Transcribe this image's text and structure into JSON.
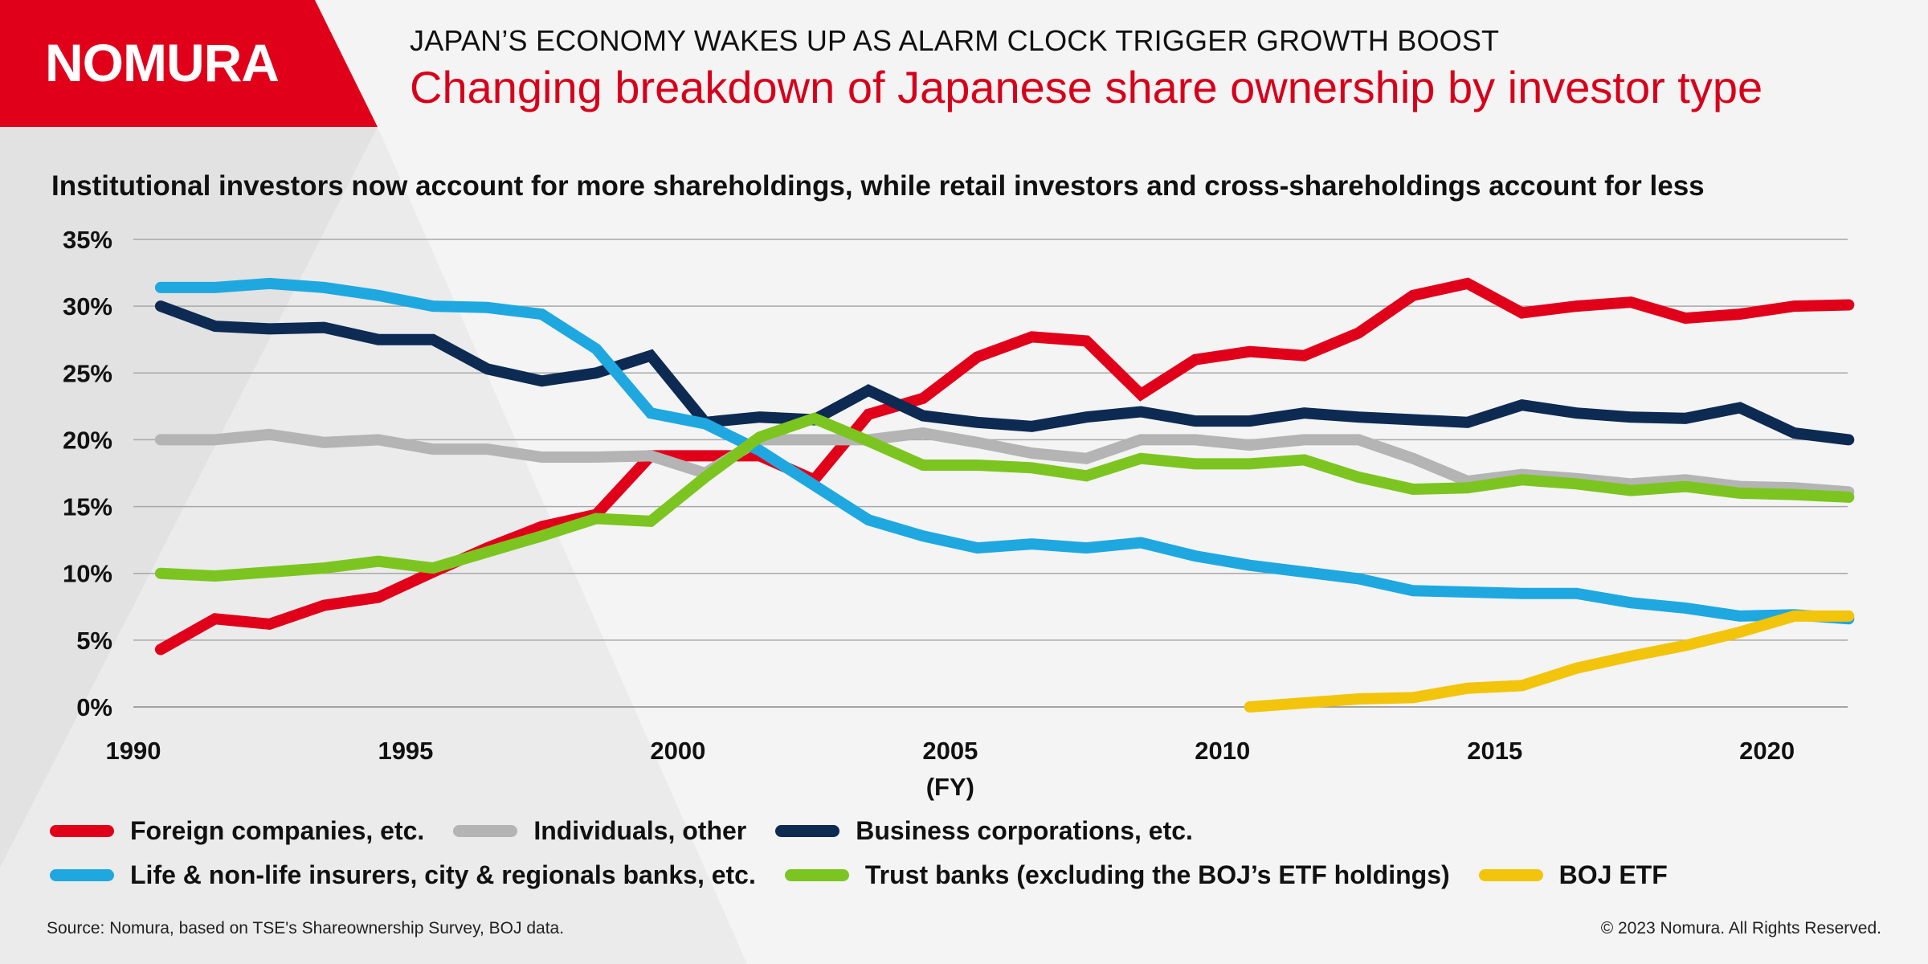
{
  "brand": {
    "name": "NOMURA",
    "accent_color": "#e1001a"
  },
  "header": {
    "kicker": "JAPAN’S ECONOMY WAKES UP AS ALARM CLOCK TRIGGER GROWTH BOOST",
    "title": "Changing breakdown of Japanese share ownership by investor type"
  },
  "footer": {
    "source": "Source: Nomura, based on TSE's Shareownership Survey, BOJ data.",
    "copyright": "© 2023 Nomura. All Rights Reserved."
  },
  "chart_data": {
    "type": "line",
    "subtitle": "Institutional investors now account for more shareholdings, while retail investors and cross-shareholdings account for less",
    "xlabel": "(FY)",
    "ylabel": "",
    "xlim": [
      1990,
      2022.5
    ],
    "ylim": [
      0,
      35
    ],
    "x_ticks": [
      1990,
      1995,
      2000,
      2005,
      2010,
      2015,
      2020
    ],
    "y_ticks": [
      0,
      5,
      10,
      15,
      20,
      25,
      30,
      35
    ],
    "y_tick_labels": [
      "0%",
      "5%",
      "10%",
      "15%",
      "20%",
      "25%",
      "30%",
      "35%"
    ],
    "grid": true,
    "legend_position": "bottom",
    "x": [
      1990.5,
      1991.5,
      1992.5,
      1993.5,
      1994.5,
      1995.5,
      1996.5,
      1997.5,
      1998.5,
      1999.5,
      2000.5,
      2001.5,
      2002.5,
      2003.5,
      2004.5,
      2005.5,
      2006.5,
      2007.5,
      2008.5,
      2009.5,
      2010.5,
      2011.5,
      2012.5,
      2013.5,
      2014.5,
      2015.5,
      2016.5,
      2017.5,
      2018.5,
      2019.5,
      2020.5,
      2021.5
    ],
    "series": [
      {
        "name": "Foreign companies, etc.",
        "color": "#e1001a",
        "values": [
          4.3,
          6.6,
          6.2,
          7.6,
          8.2,
          10.1,
          11.9,
          13.5,
          14.4,
          18.8,
          18.8,
          18.8,
          17.0,
          21.9,
          23.1,
          26.2,
          27.7,
          27.4,
          23.4,
          26.0,
          26.6,
          26.3,
          28.0,
          30.8,
          31.7,
          29.5,
          30.0,
          30.3,
          29.1,
          29.4,
          30.0,
          30.1
        ]
      },
      {
        "name": "Individuals, other",
        "color": "#b4b4b4",
        "values": [
          20.0,
          20.0,
          20.4,
          19.8,
          20.0,
          19.3,
          19.3,
          18.7,
          18.7,
          18.8,
          17.5,
          20.0,
          20.0,
          20.0,
          20.5,
          19.8,
          19.0,
          18.6,
          20.0,
          20.0,
          19.6,
          20.0,
          20.0,
          18.6,
          16.9,
          17.4,
          17.1,
          16.7,
          17.0,
          16.5,
          16.4,
          16.1
        ]
      },
      {
        "name": "Business corporations, etc.",
        "color": "#0d2a52",
        "values": [
          30.0,
          28.5,
          28.3,
          28.4,
          27.5,
          27.5,
          25.3,
          24.4,
          25.0,
          26.3,
          21.3,
          21.7,
          21.5,
          23.7,
          21.8,
          21.3,
          21.0,
          21.7,
          22.1,
          21.4,
          21.4,
          22.0,
          21.7,
          21.5,
          21.3,
          22.6,
          22.0,
          21.7,
          21.6,
          22.4,
          20.5,
          20.0
        ]
      },
      {
        "name": "Life & non-life insurers, city & regionals banks, etc.",
        "color": "#1fa8e0",
        "values": [
          31.4,
          31.4,
          31.7,
          31.4,
          30.8,
          30.0,
          29.9,
          29.4,
          26.8,
          22.0,
          21.2,
          19.2,
          16.6,
          14.0,
          12.8,
          11.9,
          12.2,
          11.9,
          12.3,
          11.3,
          10.6,
          10.1,
          9.6,
          8.7,
          8.6,
          8.5,
          8.5,
          7.8,
          7.4,
          6.8,
          6.9,
          6.6
        ]
      },
      {
        "name": "Trust banks (excluding the BOJ’s ETF holdings)",
        "color": "#7cc520",
        "values": [
          10.0,
          9.8,
          10.1,
          10.4,
          10.9,
          10.4,
          11.6,
          12.8,
          14.1,
          13.9,
          17.2,
          20.2,
          21.6,
          19.9,
          18.1,
          18.1,
          17.9,
          17.3,
          18.6,
          18.2,
          18.2,
          18.5,
          17.2,
          16.3,
          16.4,
          17.0,
          16.7,
          16.2,
          16.5,
          16.0,
          15.9,
          15.7
        ]
      },
      {
        "name": "BOJ ETF",
        "color": "#f2c40c",
        "values": [
          null,
          null,
          null,
          null,
          null,
          null,
          null,
          null,
          null,
          null,
          null,
          null,
          null,
          null,
          null,
          null,
          null,
          null,
          null,
          null,
          0.0,
          0.3,
          0.6,
          0.7,
          1.4,
          1.6,
          2.9,
          3.8,
          4.6,
          5.6,
          6.8,
          6.8
        ]
      }
    ],
    "x_tick_labels": [
      "1990",
      "1995",
      "2000",
      "2005",
      "2010",
      "2015",
      "2020"
    ]
  }
}
